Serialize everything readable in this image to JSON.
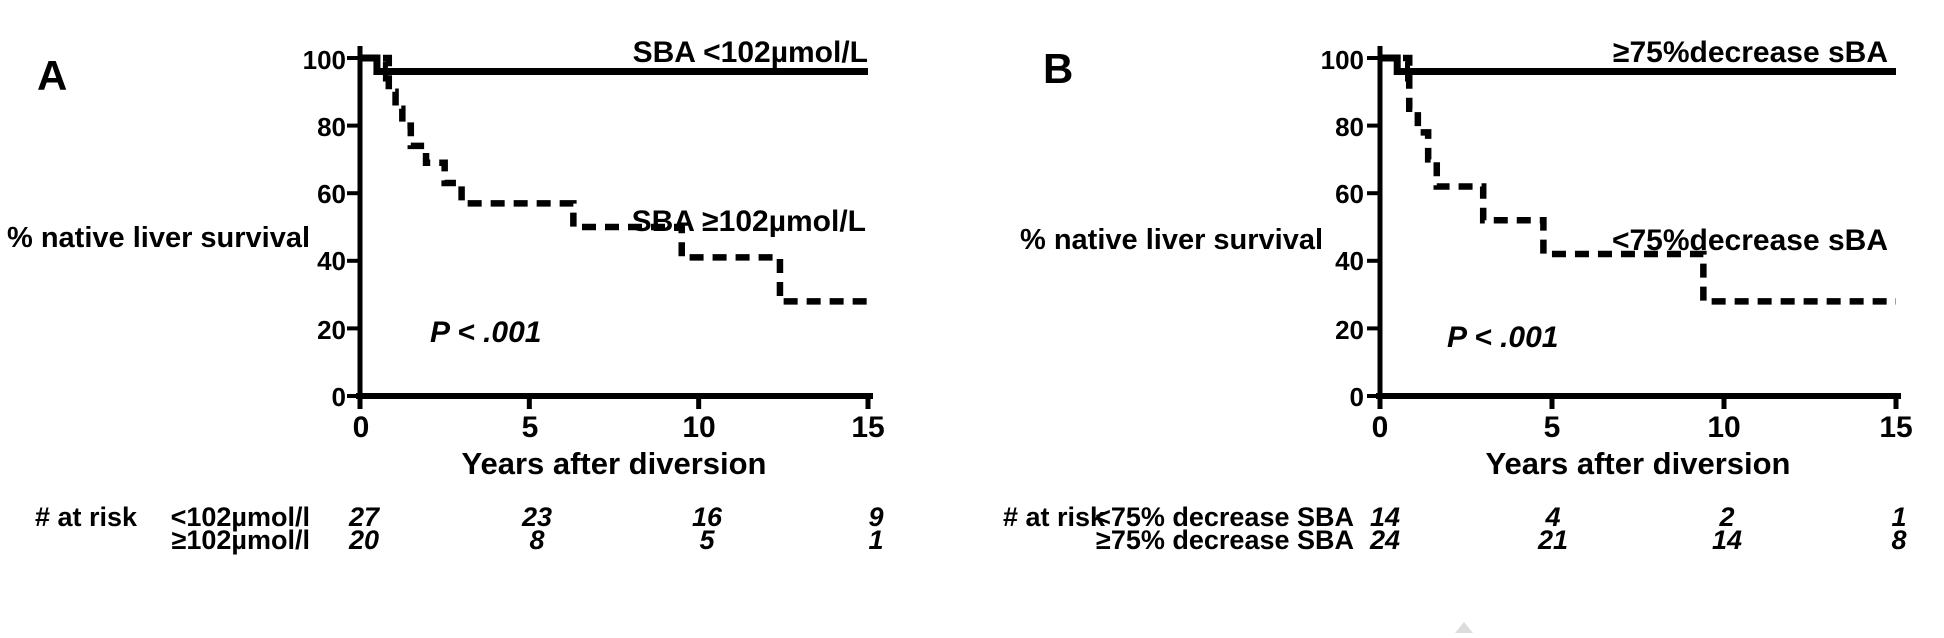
{
  "page": {
    "background": "#ffffff",
    "ink_color": "#000000",
    "watermark_color": "#dcdcdc"
  },
  "panels": [
    {
      "letter": "A"
    },
    {
      "letter": "B"
    }
  ],
  "chart_data": [
    {
      "type": "line",
      "subtype": "kaplan-meier-step",
      "title": "",
      "xlabel": "Years after diversion",
      "ylabel": "% native liver survival",
      "p_value": "P < .001",
      "xlim": [
        0,
        15
      ],
      "ylim": [
        0,
        100
      ],
      "xticks": [
        0,
        5,
        10,
        15
      ],
      "yticks": [
        0,
        20,
        40,
        60,
        80,
        100
      ],
      "grid": false,
      "legend_position": "inline-right",
      "series": [
        {
          "name": "SBA <102µmol/L",
          "style": "solid",
          "steps": [
            [
              0,
              100
            ],
            [
              0.5,
              96
            ]
          ],
          "end_x": 15,
          "censor_ticks": [
            0.75
          ]
        },
        {
          "name": "SBA ≥102µmol/L",
          "style": "dashed",
          "steps": [
            [
              0,
              100
            ],
            [
              0.85,
              90
            ],
            [
              1.05,
              85
            ],
            [
              1.25,
              80
            ],
            [
              1.5,
              74
            ],
            [
              1.95,
              69
            ],
            [
              2.5,
              63
            ],
            [
              3.0,
              57
            ],
            [
              6.3,
              50
            ],
            [
              9.5,
              41
            ],
            [
              12.4,
              28
            ]
          ],
          "end_x": 15,
          "censor_ticks": []
        }
      ],
      "at_risk": {
        "header": "# at risk",
        "time_points": [
          0,
          5,
          10,
          15
        ],
        "rows": [
          {
            "label": "<102µmol/l",
            "counts": [
              27,
              23,
              16,
              9
            ]
          },
          {
            "label": "≥102µmol/l",
            "counts": [
              20,
              8,
              5,
              1
            ]
          }
        ]
      }
    },
    {
      "type": "line",
      "subtype": "kaplan-meier-step",
      "title": "",
      "xlabel": "Years after diversion",
      "ylabel": "% native liver survival",
      "p_value": "P < .001",
      "xlim": [
        0,
        15
      ],
      "ylim": [
        0,
        100
      ],
      "xticks": [
        0,
        5,
        10,
        15
      ],
      "yticks": [
        0,
        20,
        40,
        60,
        80,
        100
      ],
      "grid": false,
      "legend_position": "inline-right",
      "series": [
        {
          "name": "≥75%decrease sBA",
          "style": "solid",
          "steps": [
            [
              0,
              100
            ],
            [
              0.5,
              96
            ]
          ],
          "end_x": 15,
          "censor_ticks": [
            0.8
          ]
        },
        {
          "name": "<75%decrease sBA",
          "style": "dashed",
          "steps": [
            [
              0,
              100
            ],
            [
              0.85,
              85
            ],
            [
              1.1,
              78
            ],
            [
              1.4,
              70
            ],
            [
              1.65,
              62
            ],
            [
              3.0,
              52
            ],
            [
              4.75,
              42
            ],
            [
              9.4,
              28
            ]
          ],
          "end_x": 15,
          "censor_ticks": []
        }
      ],
      "at_risk": {
        "header": "# at risk",
        "time_points": [
          0,
          5,
          10,
          15
        ],
        "rows": [
          {
            "label": "<75% decrease SBA",
            "counts": [
              14,
              4,
              2,
              1
            ]
          },
          {
            "label": "≥75% decrease SBA",
            "counts": [
              24,
              21,
              14,
              8
            ]
          }
        ]
      }
    }
  ]
}
